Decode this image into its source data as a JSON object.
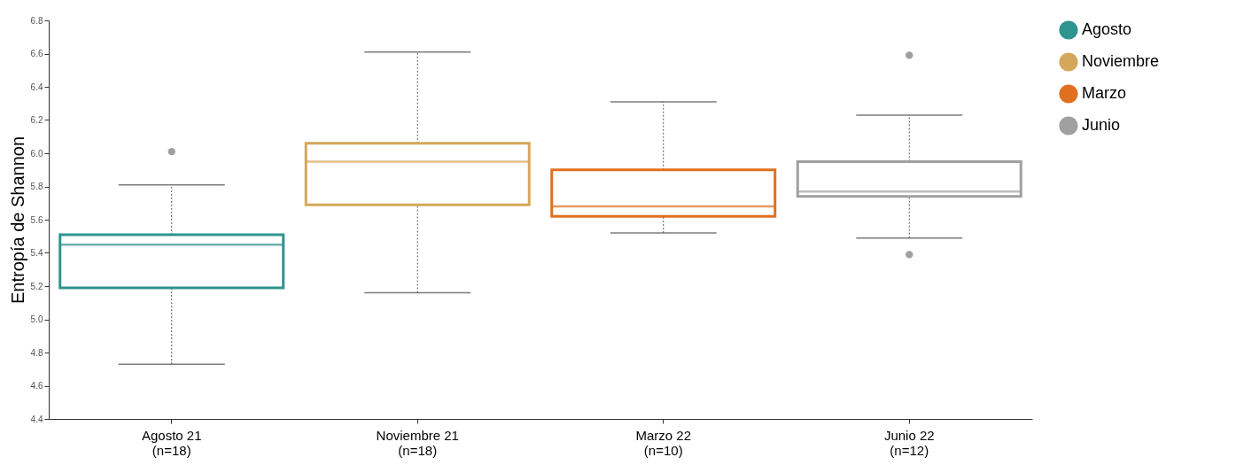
{
  "chart_data": {
    "type": "box",
    "ylabel": "Entropía de Shannon",
    "categories": [
      "Agosto 21\n(n=18)",
      "Noviembre 21\n(n=18)",
      "Marzo 22\n(n=10)",
      "Junio 22\n(n=12)"
    ],
    "series": [
      {
        "name": "Agosto",
        "color": "#2e9490",
        "boxes": [
          {
            "low": 4.73,
            "q1": 5.19,
            "median": 5.45,
            "q3": 5.51,
            "high": 5.81,
            "outliers": [
              6.01
            ]
          },
          null,
          null,
          null
        ]
      },
      {
        "name": "Noviembre",
        "color": "#d4a85a",
        "boxes": [
          null,
          {
            "low": 5.16,
            "q1": 5.69,
            "median": 5.95,
            "q3": 6.06,
            "high": 6.61
          },
          null,
          null
        ]
      },
      {
        "name": "Marzo",
        "color": "#e07020",
        "boxes": [
          null,
          null,
          {
            "low": 5.52,
            "q1": 5.62,
            "median": 5.68,
            "q3": 5.9,
            "high": 6.31
          },
          null
        ]
      },
      {
        "name": "Junio",
        "color": "#a0a0a0",
        "boxes": [
          null,
          null,
          null,
          {
            "low": 5.49,
            "q1": 5.74,
            "median": 5.77,
            "q3": 5.95,
            "high": 6.23,
            "outliers": [
              6.59,
              5.39
            ]
          }
        ]
      }
    ],
    "ylim": [
      4.4,
      6.8
    ],
    "yticks": [
      {
        "value": 4.4,
        "label": "4.4"
      },
      {
        "value": 4.6,
        "label": "4.6"
      },
      {
        "value": 4.8,
        "label": "4.8"
      },
      {
        "value": 5,
        "label": "5.0"
      },
      {
        "value": 5.2,
        "label": "5.2"
      },
      {
        "value": 5.4,
        "label": "5.4"
      },
      {
        "value": 5.6,
        "label": "5.6"
      },
      {
        "value": 5.8,
        "label": "5.8"
      },
      {
        "value": 6,
        "label": "6.0"
      },
      {
        "value": 6.2,
        "label": "6.2"
      },
      {
        "value": 6.4,
        "label": "6.4"
      },
      {
        "value": 6.6,
        "label": "6.6"
      },
      {
        "value": 6.8,
        "label": "6.8"
      }
    ],
    "grid": false,
    "legend": "right"
  }
}
